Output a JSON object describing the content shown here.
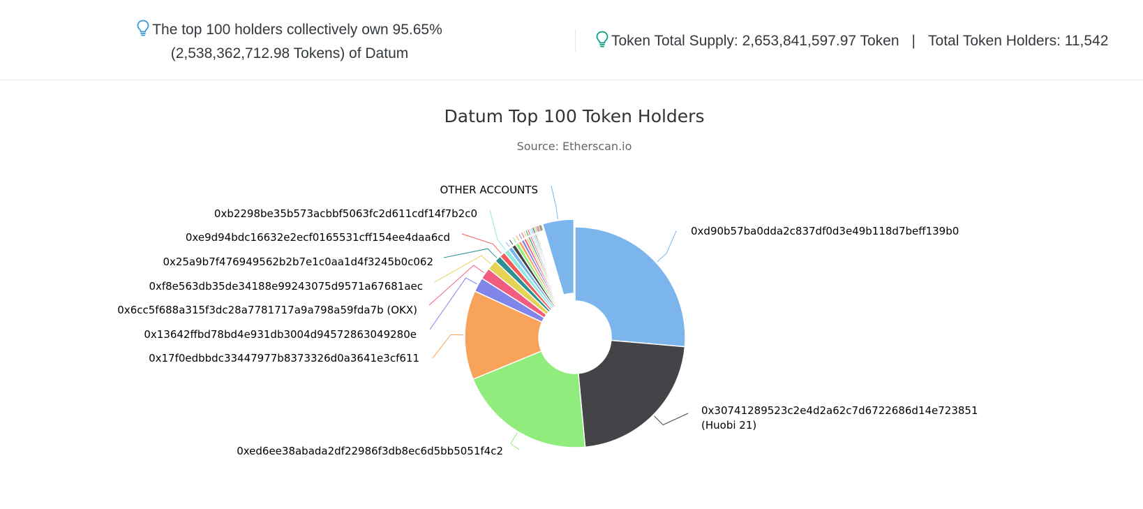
{
  "summary": {
    "top_holders_line1": "The top 100 holders collectively own 95.65%",
    "top_holders_line2": "(2,538,362,712.98 Tokens) of Datum",
    "total_supply": "Token Total Supply: 2,653,841,597.97 Token",
    "separator": "|",
    "total_holders": "Total Token Holders: 11,542",
    "icons": {
      "left": "lightbulb-icon",
      "right": "lightbulb-icon"
    },
    "colors": {
      "left_icon": "#3498db",
      "right_icon": "#00a186"
    }
  },
  "chart_data": {
    "type": "pie",
    "donut": true,
    "title": "Datum Top 100 Token Holders",
    "subtitle": "Source: Etherscan.io",
    "unit": "% of supply",
    "slices": [
      {
        "label": "0xd90b57ba0dda2c837df0d3e49b118d7beff139b0",
        "value": 25.0,
        "color": "#7cb5ec"
      },
      {
        "label": "0x30741289523c2e4d2a62c7d6722686d14e723851",
        "label2": "(Huobi 21)",
        "value": 21.0,
        "color": "#434348"
      },
      {
        "label": "0xed6ee38abada2df22986f3db8ec6d5bb5051f4c2",
        "value": 19.2,
        "color": "#90ed7d"
      },
      {
        "label": "0x17f0edbbdc33447977b8373326d0a3641e3cf611",
        "value": 12.4,
        "color": "#f7a35c"
      },
      {
        "label": "0x13642ffbd78bd4e931db3004d94572863049280e",
        "value": 2.0,
        "color": "#8085e9"
      },
      {
        "label": "0x6cc5f688a315f3dc28a7781717a9a798a59fda7b (OKX)",
        "value": 1.6,
        "color": "#f15c80"
      },
      {
        "label": "0xf8e563db35de34188e99243075d9571a67681aec",
        "value": 1.4,
        "color": "#e4d354"
      },
      {
        "label": "0x25a9b7f476949562b2b7e1c0aa1d4f3245b0c062",
        "value": 0.9,
        "color": "#2b908f"
      },
      {
        "label": "0xe9d94bdc16632e2ecf0165531cff154ee4daa6cd",
        "value": 0.8,
        "color": "#f45b5b"
      },
      {
        "label": "0xb2298be35b573acbbf5063fc2d611cdf14f7b2c0",
        "value": 0.7,
        "color": "#91e8e1"
      },
      {
        "label": "",
        "value": 0.6,
        "color": "#7cb5ec"
      },
      {
        "label": "",
        "value": 0.55,
        "color": "#434348"
      },
      {
        "label": "",
        "value": 0.5,
        "color": "#90ed7d"
      },
      {
        "label": "",
        "value": 0.45,
        "color": "#f7a35c"
      },
      {
        "label": "",
        "value": 0.4,
        "color": "#8085e9"
      },
      {
        "label": "",
        "value": 0.35,
        "color": "#f15c80"
      },
      {
        "label": "",
        "value": 0.3,
        "color": "#e4d354"
      },
      {
        "label": "",
        "value": 0.28,
        "color": "#2b908f"
      },
      {
        "label": "",
        "value": 0.26,
        "color": "#f45b5b"
      },
      {
        "label": "",
        "value": 0.24,
        "color": "#91e8e1"
      },
      {
        "label": "",
        "value": 0.22,
        "color": "#7cb5ec"
      },
      {
        "label": "",
        "value": 0.2,
        "color": "#434348"
      },
      {
        "label": "",
        "value": 0.18,
        "color": "#90ed7d"
      },
      {
        "label": "",
        "value": 0.16,
        "color": "#f7a35c"
      },
      {
        "label": "",
        "value": 0.15,
        "color": "#8085e9"
      },
      {
        "label": "",
        "value": 0.14,
        "color": "#f15c80"
      },
      {
        "label": "",
        "value": 0.13,
        "color": "#e4d354"
      },
      {
        "label": "",
        "value": 0.12,
        "color": "#2b908f"
      },
      {
        "label": "",
        "value": 0.11,
        "color": "#f45b5b"
      },
      {
        "label": "",
        "value": 0.1,
        "color": "#91e8e1"
      },
      {
        "label": "OTHER ACCOUNTS",
        "value": 4.35,
        "color": "#7cb5ec",
        "sliced": true
      }
    ]
  }
}
